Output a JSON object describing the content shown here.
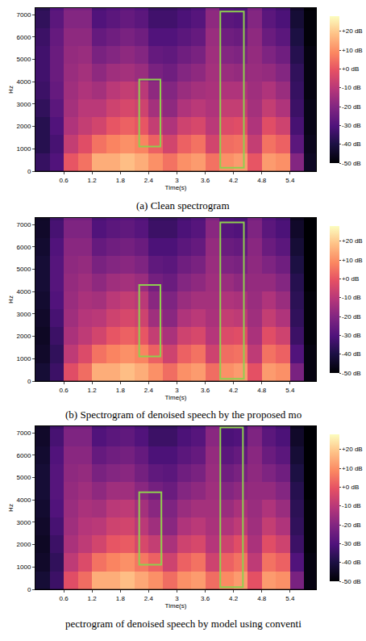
{
  "chart_data": [
    {
      "type": "heatmap",
      "title": "(a) Clean spectrogram",
      "x_label": "Time(s)",
      "y_label": "Hz",
      "x": [
        0.15,
        0.45,
        0.75,
        1.05,
        1.35,
        1.65,
        1.95,
        2.25,
        2.55,
        2.85,
        3.15,
        3.45,
        3.75,
        4.05,
        4.35,
        4.65,
        4.95,
        5.25,
        5.55,
        5.85
      ],
      "y": [
        400,
        1200,
        2000,
        2800,
        3600,
        4400,
        5200,
        6000,
        6800,
        7600
      ],
      "z": [
        [
          -35,
          -30,
          0,
          5,
          15,
          15,
          18,
          15,
          10,
          5,
          10,
          12,
          5,
          10,
          12,
          0,
          12,
          10,
          -20,
          -45
        ],
        [
          -38,
          -32,
          -8,
          -2,
          5,
          8,
          10,
          8,
          2,
          -5,
          2,
          5,
          -5,
          4,
          5,
          -8,
          5,
          2,
          -28,
          -46
        ],
        [
          -38,
          -30,
          -12,
          -8,
          -5,
          0,
          2,
          0,
          -8,
          -12,
          -6,
          -4,
          -10,
          -3,
          -2,
          -12,
          -2,
          -6,
          -32,
          -47
        ],
        [
          -36,
          -28,
          -14,
          -10,
          -10,
          -6,
          -4,
          -6,
          -14,
          -18,
          -12,
          -10,
          -12,
          -8,
          -8,
          -14,
          -8,
          -12,
          -34,
          -47
        ],
        [
          -34,
          -26,
          -15,
          -12,
          -14,
          -10,
          -8,
          -10,
          -18,
          -20,
          -16,
          -14,
          -13,
          -12,
          -12,
          -15,
          -12,
          -16,
          -35,
          -48
        ],
        [
          -33,
          -25,
          -16,
          -14,
          -18,
          -15,
          -14,
          -16,
          -22,
          -24,
          -20,
          -18,
          -14,
          -16,
          -17,
          -16,
          -17,
          -20,
          -36,
          -48
        ],
        [
          -33,
          -25,
          -17,
          -16,
          -22,
          -20,
          -18,
          -20,
          -26,
          -27,
          -24,
          -22,
          -15,
          -20,
          -21,
          -17,
          -21,
          -24,
          -38,
          -48
        ],
        [
          -34,
          -26,
          -18,
          -18,
          -26,
          -24,
          -22,
          -24,
          -30,
          -30,
          -28,
          -26,
          -16,
          -24,
          -25,
          -18,
          -25,
          -28,
          -40,
          -49
        ],
        [
          -36,
          -28,
          -20,
          -20,
          -30,
          -28,
          -26,
          -28,
          -33,
          -33,
          -31,
          -29,
          -18,
          -28,
          -29,
          -20,
          -28,
          -31,
          -42,
          -49
        ],
        [
          -38,
          -30,
          -22,
          -22,
          -32,
          -30,
          -28,
          -30,
          -35,
          -35,
          -33,
          -31,
          -20,
          -30,
          -31,
          -22,
          -30,
          -33,
          -44,
          -50
        ]
      ],
      "xlim": [
        0,
        5.95
      ],
      "ylim": [
        0,
        7300
      ],
      "xticks": [
        0.6,
        1.2,
        1.8,
        2.4,
        3,
        3.6,
        4.2,
        4.8,
        5.4
      ],
      "yticks": [
        0,
        1000,
        2000,
        3000,
        4000,
        5000,
        6000,
        7000
      ],
      "colorbar": {
        "range": [
          -50,
          28
        ],
        "ticks": [
          {
            "value": 20,
            "label": "+20 dB"
          },
          {
            "value": 10,
            "label": "+10 dB"
          },
          {
            "value": 0,
            "label": "+0 dB"
          },
          {
            "value": -10,
            "label": "-10 dB"
          },
          {
            "value": -20,
            "label": "-20 dB"
          },
          {
            "value": -30,
            "label": "-30 dB"
          },
          {
            "value": -40,
            "label": "-40 dB"
          },
          {
            "value": -50,
            "label": "-50 dB"
          }
        ]
      },
      "boxes": [
        {
          "x0": 2.2,
          "x1": 2.65,
          "y0": 1100,
          "y1": 4100,
          "color": "#8fce4f"
        },
        {
          "x0": 3.92,
          "x1": 4.42,
          "y0": 150,
          "y1": 7150,
          "color": "#8fce4f"
        }
      ]
    },
    {
      "type": "heatmap",
      "title": "(b) Spectrogram of denoised speech by the proposed mo",
      "x_label": "Time(s)",
      "y_label": "Hz",
      "x": [
        0.15,
        0.45,
        0.75,
        1.05,
        1.35,
        1.65,
        1.95,
        2.25,
        2.55,
        2.85,
        3.15,
        3.45,
        3.75,
        4.05,
        4.35,
        4.65,
        4.95,
        5.25,
        5.55,
        5.85
      ],
      "y": [
        400,
        1200,
        2000,
        2800,
        3600,
        4400,
        5200,
        6000,
        6800,
        7600
      ],
      "z": [
        [
          -42,
          -34,
          -2,
          4,
          15,
          15,
          18,
          15,
          10,
          4,
          10,
          12,
          4,
          10,
          12,
          -1,
          12,
          10,
          -22,
          -48
        ],
        [
          -44,
          -36,
          -9,
          -3,
          5,
          8,
          10,
          8,
          2,
          -6,
          2,
          5,
          -6,
          4,
          5,
          -9,
          5,
          2,
          -30,
          -48
        ],
        [
          -45,
          -34,
          -13,
          -9,
          -5,
          0,
          2,
          0,
          -8,
          -13,
          -6,
          -4,
          -11,
          -3,
          -2,
          -13,
          -2,
          -6,
          -34,
          -49
        ],
        [
          -44,
          -32,
          -15,
          -11,
          -10,
          -6,
          -4,
          -6,
          -15,
          -19,
          -12,
          -10,
          -13,
          -8,
          -9,
          -15,
          -8,
          -12,
          -36,
          -49
        ],
        [
          -43,
          -30,
          -16,
          -13,
          -14,
          -10,
          -8,
          -10,
          -19,
          -21,
          -16,
          -14,
          -14,
          -12,
          -13,
          -16,
          -12,
          -16,
          -37,
          -49
        ],
        [
          -42,
          -29,
          -17,
          -15,
          -18,
          -15,
          -14,
          -16,
          -23,
          -25,
          -20,
          -18,
          -15,
          -16,
          -18,
          -17,
          -17,
          -20,
          -38,
          -50
        ],
        [
          -42,
          -29,
          -18,
          -17,
          -22,
          -20,
          -19,
          -21,
          -27,
          -28,
          -24,
          -22,
          -16,
          -21,
          -22,
          -18,
          -21,
          -24,
          -40,
          -50
        ],
        [
          -43,
          -30,
          -19,
          -19,
          -26,
          -24,
          -23,
          -25,
          -31,
          -31,
          -28,
          -26,
          -17,
          -25,
          -26,
          -19,
          -25,
          -28,
          -42,
          -50
        ],
        [
          -44,
          -32,
          -21,
          -21,
          -30,
          -28,
          -27,
          -29,
          -34,
          -34,
          -31,
          -29,
          -19,
          -29,
          -30,
          -21,
          -28,
          -31,
          -44,
          -50
        ],
        [
          -45,
          -34,
          -23,
          -23,
          -32,
          -30,
          -29,
          -31,
          -36,
          -36,
          -33,
          -31,
          -21,
          -31,
          -32,
          -23,
          -30,
          -33,
          -46,
          -50
        ]
      ],
      "xlim": [
        0,
        5.95
      ],
      "ylim": [
        0,
        7300
      ],
      "xticks": [
        0.6,
        1.2,
        1.8,
        2.4,
        3,
        3.6,
        4.2,
        4.8,
        5.4
      ],
      "yticks": [
        0,
        1000,
        2000,
        3000,
        4000,
        5000,
        6000,
        7000
      ],
      "colorbar": {
        "range": [
          -50,
          28
        ],
        "ticks": [
          {
            "value": 20,
            "label": "+20 dB"
          },
          {
            "value": 10,
            "label": "+10 dB"
          },
          {
            "value": 0,
            "label": "+0 dB"
          },
          {
            "value": -10,
            "label": "-10 dB"
          },
          {
            "value": -20,
            "label": "-20 dB"
          },
          {
            "value": -30,
            "label": "-30 dB"
          },
          {
            "value": -40,
            "label": "-40 dB"
          },
          {
            "value": -50,
            "label": "-50 dB"
          }
        ]
      },
      "boxes": [
        {
          "x0": 2.2,
          "x1": 2.65,
          "y0": 1100,
          "y1": 4300,
          "color": "#8fce4f"
        },
        {
          "x0": 3.92,
          "x1": 4.42,
          "y0": 100,
          "y1": 7100,
          "color": "#8fce4f"
        }
      ]
    },
    {
      "type": "heatmap",
      "title": "pectrogram of denoised speech by model using conventi",
      "x_label": "Time(s)",
      "y_label": "Hz",
      "x": [
        0.15,
        0.45,
        0.75,
        1.05,
        1.35,
        1.65,
        1.95,
        2.25,
        2.55,
        2.85,
        3.15,
        3.45,
        3.75,
        4.05,
        4.35,
        4.65,
        4.95,
        5.25,
        5.55,
        5.85
      ],
      "y": [
        400,
        1200,
        2000,
        2800,
        3600,
        4400,
        5200,
        6000,
        6800,
        7600
      ],
      "z": [
        [
          -42,
          -34,
          -2,
          4,
          15,
          15,
          18,
          14,
          10,
          4,
          10,
          12,
          4,
          9,
          12,
          -1,
          12,
          10,
          -22,
          -48
        ],
        [
          -44,
          -36,
          -9,
          -3,
          5,
          8,
          10,
          6,
          2,
          -6,
          2,
          5,
          -6,
          2,
          5,
          -9,
          5,
          2,
          -30,
          -48
        ],
        [
          -45,
          -34,
          -13,
          -9,
          -5,
          0,
          1,
          -4,
          -8,
          -13,
          -6,
          -4,
          -11,
          -6,
          -2,
          -13,
          -2,
          -6,
          -34,
          -49
        ],
        [
          -44,
          -32,
          -15,
          -11,
          -10,
          -6,
          -5,
          -10,
          -15,
          -19,
          -12,
          -10,
          -13,
          -12,
          -9,
          -15,
          -8,
          -12,
          -36,
          -49
        ],
        [
          -43,
          -30,
          -16,
          -13,
          -14,
          -10,
          -9,
          -14,
          -19,
          -21,
          -16,
          -14,
          -14,
          -16,
          -13,
          -16,
          -12,
          -16,
          -37,
          -49
        ],
        [
          -42,
          -29,
          -17,
          -15,
          -18,
          -15,
          -15,
          -19,
          -23,
          -25,
          -20,
          -18,
          -15,
          -20,
          -18,
          -17,
          -17,
          -20,
          -38,
          -50
        ],
        [
          -42,
          -29,
          -18,
          -17,
          -22,
          -20,
          -19,
          -23,
          -27,
          -28,
          -24,
          -22,
          -16,
          -24,
          -22,
          -18,
          -21,
          -24,
          -40,
          -50
        ],
        [
          -43,
          -30,
          -19,
          -19,
          -26,
          -24,
          -23,
          -26,
          -31,
          -31,
          -28,
          -26,
          -17,
          -28,
          -26,
          -19,
          -25,
          -28,
          -42,
          -50
        ],
        [
          -44,
          -32,
          -21,
          -21,
          -30,
          -28,
          -27,
          -30,
          -34,
          -34,
          -31,
          -29,
          -19,
          -31,
          -30,
          -21,
          -28,
          -31,
          -44,
          -50
        ],
        [
          -45,
          -34,
          -23,
          -23,
          -32,
          -30,
          -29,
          -32,
          -36,
          -36,
          -33,
          -31,
          -21,
          -33,
          -32,
          -23,
          -30,
          -33,
          -46,
          -50
        ]
      ],
      "xlim": [
        0,
        5.95
      ],
      "ylim": [
        0,
        7300
      ],
      "xticks": [
        0.6,
        1.2,
        1.8,
        2.4,
        3,
        3.6,
        4.2,
        4.8,
        5.4
      ],
      "yticks": [
        0,
        1000,
        2000,
        3000,
        4000,
        5000,
        6000,
        7000
      ],
      "colorbar": {
        "range": [
          -50,
          28
        ],
        "ticks": [
          {
            "value": 20,
            "label": "+20 dB"
          },
          {
            "value": 10,
            "label": "+10 dB"
          },
          {
            "value": 0,
            "label": "+0 dB"
          },
          {
            "value": -10,
            "label": "-10 dB"
          },
          {
            "value": -20,
            "label": "-20 dB"
          },
          {
            "value": -30,
            "label": "-30 dB"
          },
          {
            "value": -40,
            "label": "-40 dB"
          },
          {
            "value": -50,
            "label": "-50 dB"
          }
        ]
      },
      "boxes": [
        {
          "x0": 2.2,
          "x1": 2.67,
          "y0": 1100,
          "y1": 4350,
          "color": "#8fce4f"
        },
        {
          "x0": 3.92,
          "x1": 4.4,
          "y0": 100,
          "y1": 7250,
          "color": "#8fce4f"
        }
      ]
    }
  ]
}
